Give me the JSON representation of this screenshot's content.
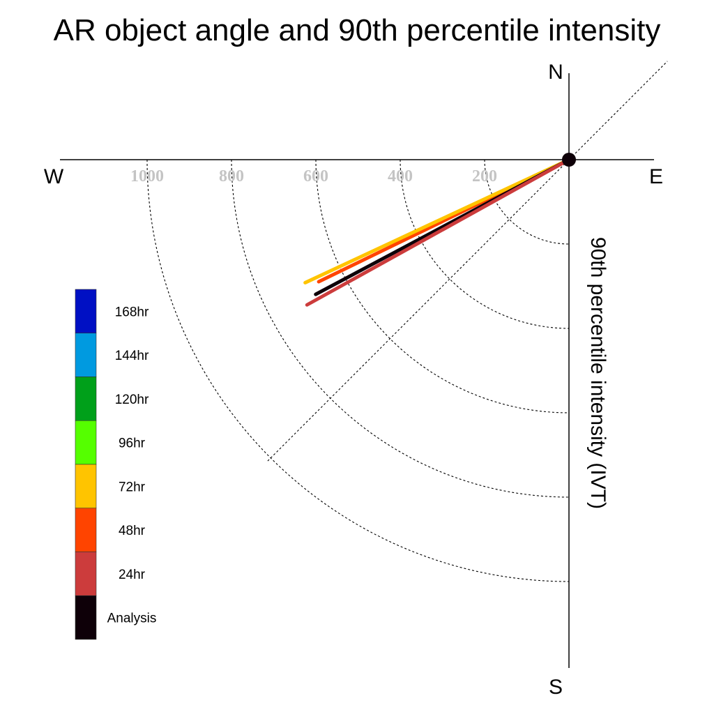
{
  "chart_data": {
    "type": "polar-vector",
    "title": "AR object angle and 90th percentile intensity",
    "ylabel": "90th percentile intensity (IVT)",
    "compass": {
      "north": "N",
      "south": "S",
      "east": "E",
      "west": "W"
    },
    "radial_ticks": [
      "200",
      "400",
      "600",
      "800",
      "1000"
    ],
    "radial_tick_values": [
      200,
      400,
      600,
      800,
      1000
    ],
    "rlim": [
      0,
      1000
    ],
    "grid": true,
    "legend_position": "left",
    "legend": [
      {
        "label": "168hr",
        "color": "#0010c4"
      },
      {
        "label": "144hr",
        "color": "#009ae0"
      },
      {
        "label": "120hr",
        "color": "#00a01a"
      },
      {
        "label": "96hr",
        "color": "#55ff00"
      },
      {
        "label": "72hr",
        "color": "#ffc400"
      },
      {
        "label": "48hr",
        "color": "#ff4400"
      },
      {
        "label": "24hr",
        "color": "#cc3c3c"
      },
      {
        "label": "Analysis",
        "color": "#0e0008"
      }
    ],
    "series": [
      {
        "name": "48hr",
        "color": "#ff4400",
        "direction_deg": 244,
        "intensity": 660
      },
      {
        "name": "72hr",
        "color": "#ffc400",
        "direction_deg": 245,
        "intensity": 690
      },
      {
        "name": "Analysis",
        "color": "#0e0008",
        "direction_deg": 242,
        "intensity": 680
      },
      {
        "name": "24hr",
        "color": "#cc3c3c",
        "direction_deg": 241,
        "intensity": 710
      }
    ]
  }
}
